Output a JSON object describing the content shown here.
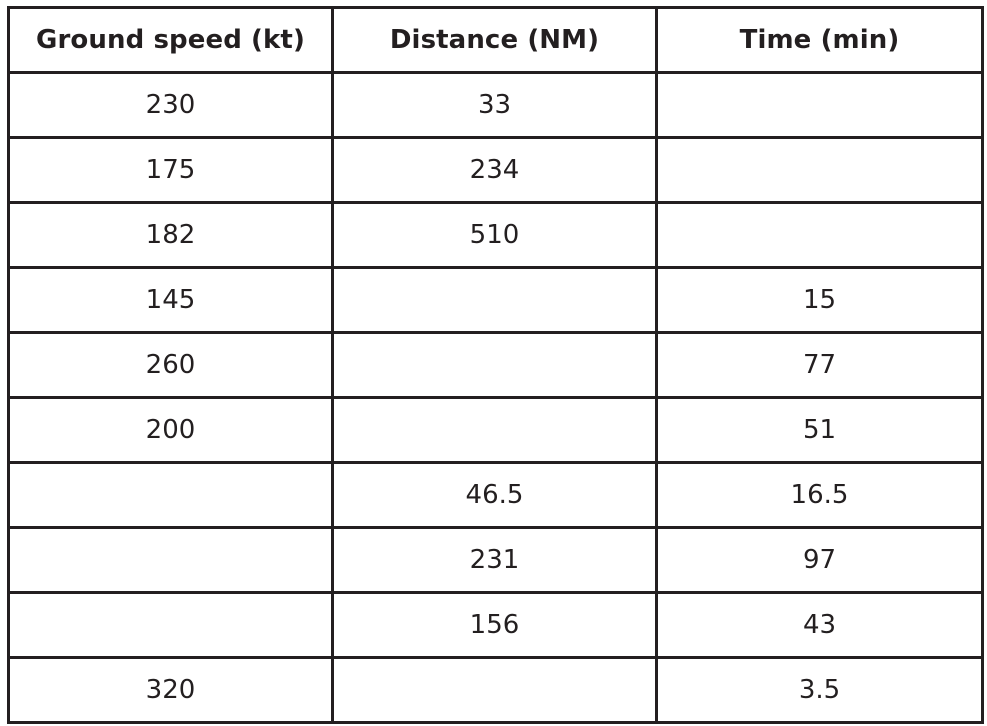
{
  "table": {
    "headers": [
      "Ground speed (kt)",
      "Distance (NM)",
      "Time (min)"
    ],
    "rows": [
      [
        "230",
        "33",
        ""
      ],
      [
        "175",
        "234",
        ""
      ],
      [
        "182",
        "510",
        ""
      ],
      [
        "145",
        "",
        "15"
      ],
      [
        "260",
        "",
        "77"
      ],
      [
        "200",
        "",
        "51"
      ],
      [
        "",
        "46.5",
        "16.5"
      ],
      [
        "",
        "231",
        "97"
      ],
      [
        "",
        "156",
        "43"
      ],
      [
        "320",
        "",
        "3.5"
      ]
    ]
  }
}
